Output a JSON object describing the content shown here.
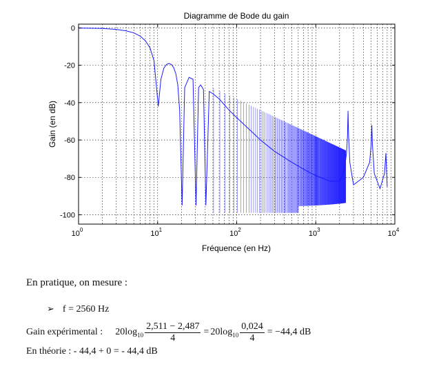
{
  "chart_data": {
    "type": "line",
    "title": "Diagramme de Bode du gain",
    "xlabel": "Fréquence (en Hz)",
    "ylabel": "Gain (en dB)",
    "xscale": "log",
    "xlim": [
      1,
      10000
    ],
    "ylim": [
      -105,
      2
    ],
    "yticks": [
      0,
      -20,
      -40,
      -60,
      -80,
      -100
    ],
    "ytick_labels": [
      "0",
      "-20",
      "-40",
      "-60",
      "-80",
      "-100"
    ],
    "xtick_labels": [
      {
        "base": "10",
        "exp": "0"
      },
      {
        "base": "10",
        "exp": "1"
      },
      {
        "base": "10",
        "exp": "2"
      },
      {
        "base": "10",
        "exp": "3"
      },
      {
        "base": "10",
        "exp": "4"
      }
    ],
    "grid": true,
    "line_color": "#1a1aff",
    "series": [
      {
        "f": [
          1,
          2,
          3,
          4,
          5,
          6,
          7,
          8,
          9,
          10.2,
          11,
          12,
          13,
          14,
          15,
          16,
          17,
          18,
          19,
          20.4,
          22,
          25,
          28,
          30.6,
          33,
          35,
          38,
          40.8,
          45,
          51,
          60,
          80,
          100,
          150,
          200,
          300,
          500,
          800,
          1000,
          1500,
          2000,
          2300,
          2450,
          2520,
          2560,
          2600,
          2700,
          3000,
          4000,
          4800,
          5000,
          5120,
          5200,
          5500,
          6500,
          7400,
          7700,
          8000
        ],
        "gain": [
          -0.1,
          -0.3,
          -0.8,
          -1.6,
          -2.7,
          -4.4,
          -6.9,
          -10.6,
          -17.5,
          -42,
          -27.5,
          -21.5,
          -19.5,
          -19.0,
          -19.7,
          -21.4,
          -24.6,
          -30.5,
          -44,
          -95,
          -32,
          -26.5,
          -27.5,
          -95,
          -32,
          -30.5,
          -33,
          -95,
          -34,
          -35.5,
          -38,
          -44,
          -48,
          -55,
          -60,
          -66,
          -72,
          -77,
          -79,
          -82,
          -82,
          -76,
          -67,
          -58,
          -44.4,
          -58,
          -72,
          -84,
          -80,
          -72,
          -63,
          -52,
          -62,
          -78,
          -86,
          -78,
          -67,
          -85
        ]
      }
    ]
  },
  "text": {
    "intro": "En pratique, on mesure :",
    "bullet_arrow": "➢",
    "bullet": "f = 2560 Hz",
    "gain_label": "Gain expérimental :",
    "log_prefix": "20log",
    "log_sub": "10",
    "frac1_num": "2,511 − 2,487",
    "frac1_den": "4",
    "equals": "=",
    "frac2_num": "0,024",
    "frac2_den": "4",
    "result": "= −44,4 dB",
    "theory": "En théorie : - 44,4 + 0 = - 44,4 dB"
  }
}
